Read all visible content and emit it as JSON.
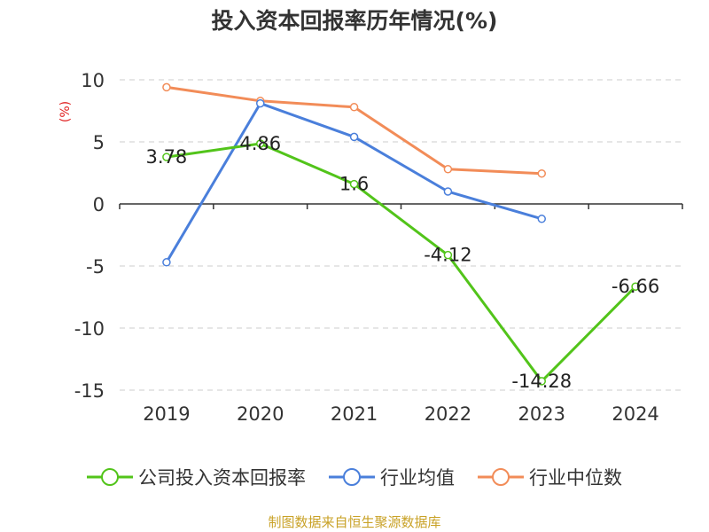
{
  "chart_data": {
    "type": "line",
    "title": "投入资本回报率历年情况(%)",
    "ylabel": "(%)",
    "xlabel": "",
    "categories": [
      "2019",
      "2020",
      "2021",
      "2022",
      "2023",
      "2024"
    ],
    "ylim": [
      -15,
      10
    ],
    "yticks": [
      10,
      5,
      0,
      -5,
      -10,
      -15
    ],
    "grid": true,
    "legend_position": "bottom",
    "series": [
      {
        "name": "公司投入资本回报率",
        "color": "#52c41a",
        "values": [
          3.78,
          4.86,
          1.6,
          -4.12,
          -14.28,
          -6.66
        ],
        "data_labels": [
          "3.78",
          "4.86",
          "1.6",
          "-4.12",
          "-14.28",
          "-6.66"
        ]
      },
      {
        "name": "行业均值",
        "color": "#4a7fdb",
        "values": [
          -4.7,
          8.1,
          5.4,
          1.0,
          -1.2,
          null
        ]
      },
      {
        "name": "行业中位数",
        "color": "#f28c58",
        "values": [
          9.4,
          8.3,
          7.8,
          2.8,
          2.45,
          null
        ]
      }
    ]
  },
  "footer": {
    "source_note": "制图数据来自恒生聚源数据库"
  }
}
